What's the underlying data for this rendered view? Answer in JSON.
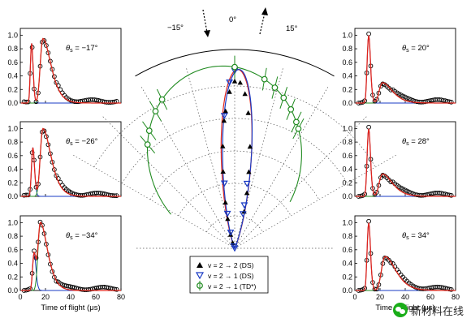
{
  "chart_data": [
    {
      "type": "line",
      "id": "tof-a",
      "annotation": {
        "theta_symbol": "θ",
        "theta_sub": "s",
        "angle": " = −17°"
      },
      "xlim": [
        0,
        80
      ],
      "ylim": [
        0,
        1.1
      ],
      "peak_fast": 9,
      "peak_slow": 18,
      "amp_fast": 0.88,
      "amp_slow": 0.95
    },
    {
      "type": "line",
      "id": "tof-b",
      "annotation": {
        "theta_symbol": "θ",
        "theta_sub": "s",
        "angle": " = −26°"
      },
      "xlim": [
        0,
        80
      ],
      "ylim": [
        0,
        1.1
      ],
      "peak_fast": 10,
      "peak_slow": 18,
      "amp_fast": 0.72,
      "amp_slow": 1.0
    },
    {
      "type": "line",
      "id": "tof-c",
      "annotation": {
        "theta_symbol": "θ",
        "theta_sub": "s",
        "angle": " = −34°"
      },
      "xlim": [
        0,
        80
      ],
      "ylim": [
        0,
        1.1
      ],
      "peak_fast": 11,
      "peak_slow": 16,
      "amp_fast": 0.55,
      "amp_slow": 1.0
    },
    {
      "type": "line",
      "id": "tof-d",
      "annotation": {
        "theta_symbol": "θ",
        "theta_sub": "s",
        "angle": " = 20°"
      },
      "xlim": [
        0,
        80
      ],
      "ylim": [
        0,
        1.1
      ],
      "peak_fast": 11,
      "peak_slow": 22,
      "amp_fast": 1.0,
      "amp_slow": 0.3
    },
    {
      "type": "line",
      "id": "tof-e",
      "annotation": {
        "theta_symbol": "θ",
        "theta_sub": "s",
        "angle": " = 28°"
      },
      "xlim": [
        0,
        80
      ],
      "ylim": [
        0,
        1.1
      ],
      "peak_fast": 11,
      "peak_slow": 22,
      "amp_fast": 1.0,
      "amp_slow": 0.33
    },
    {
      "type": "line",
      "id": "tof-f",
      "annotation": {
        "theta_symbol": "θ",
        "theta_sub": "s",
        "angle": " = 34°"
      },
      "xlim": [
        0,
        80
      ],
      "ylim": [
        0,
        1.1
      ],
      "peak_fast": 11,
      "peak_slow": 24,
      "amp_fast": 1.0,
      "amp_slow": 0.5
    }
  ],
  "tof_axes": {
    "yticks": [
      "0.0",
      "0.2",
      "0.4",
      "0.6",
      "0.8",
      "1.0"
    ],
    "xticks": [
      "0",
      "20",
      "40",
      "60",
      "80"
    ],
    "xlabel": "Time of flight (μs)"
  },
  "polar": {
    "type": "scatter",
    "angle_labels": [
      "−15°",
      "0°",
      "15°"
    ],
    "legend": [
      {
        "label": "v = 2 → 2 (DS)",
        "marker": "filled-triangle",
        "color": "#000000"
      },
      {
        "label": "v = 2 → 1 (DS)",
        "marker": "open-triangle-down",
        "color": "#1a3bc4"
      },
      {
        "label": "v = 2 → 1 (TD*)",
        "marker": "open-circle",
        "color": "#1f8a1f"
      }
    ],
    "series_ds22": [
      [
        -20,
        0.62
      ],
      [
        -17,
        0.55
      ],
      [
        -14,
        0.5
      ],
      [
        -12,
        0.58
      ],
      [
        -9,
        0.65
      ],
      [
        -7,
        0.72
      ],
      [
        -5,
        0.78
      ],
      [
        -4,
        0.88
      ],
      [
        -2,
        0.95
      ],
      [
        0,
        0.98
      ],
      [
        2,
        0.92
      ],
      [
        4,
        0.86
      ],
      [
        6,
        0.8
      ],
      [
        9,
        0.72
      ],
      [
        11,
        0.66
      ],
      [
        13,
        0.6
      ],
      [
        15,
        0.55
      ]
    ],
    "series_ds21": [
      [
        -2,
        0.98
      ],
      [
        0,
        0.99
      ],
      [
        -10,
        0.52
      ],
      [
        -13,
        0.34
      ],
      [
        -16,
        0.2
      ],
      [
        -22,
        0.12
      ],
      [
        -30,
        0.06
      ],
      [
        -5,
        0.12
      ],
      [
        14,
        0.3
      ],
      [
        15,
        0.7
      ],
      [
        12,
        0.85
      ]
    ],
    "series_td": [
      [
        -40,
        0.92
      ],
      [
        -36,
        1.0
      ],
      [
        -30,
        1.0
      ],
      [
        -26,
        0.98
      ],
      [
        0,
        0.99
      ],
      [
        10,
        0.95
      ],
      [
        14,
        0.92
      ],
      [
        18,
        0.8
      ],
      [
        22,
        0.7
      ],
      [
        26,
        0.62
      ],
      [
        28,
        0.52
      ]
    ],
    "colors": {
      "ds22": "#000000",
      "ds21": "#1a3bc4",
      "td": "#1f8a1f",
      "fit_red": "#e0241b"
    }
  },
  "watermark": {
    "text": "新材料在线"
  }
}
